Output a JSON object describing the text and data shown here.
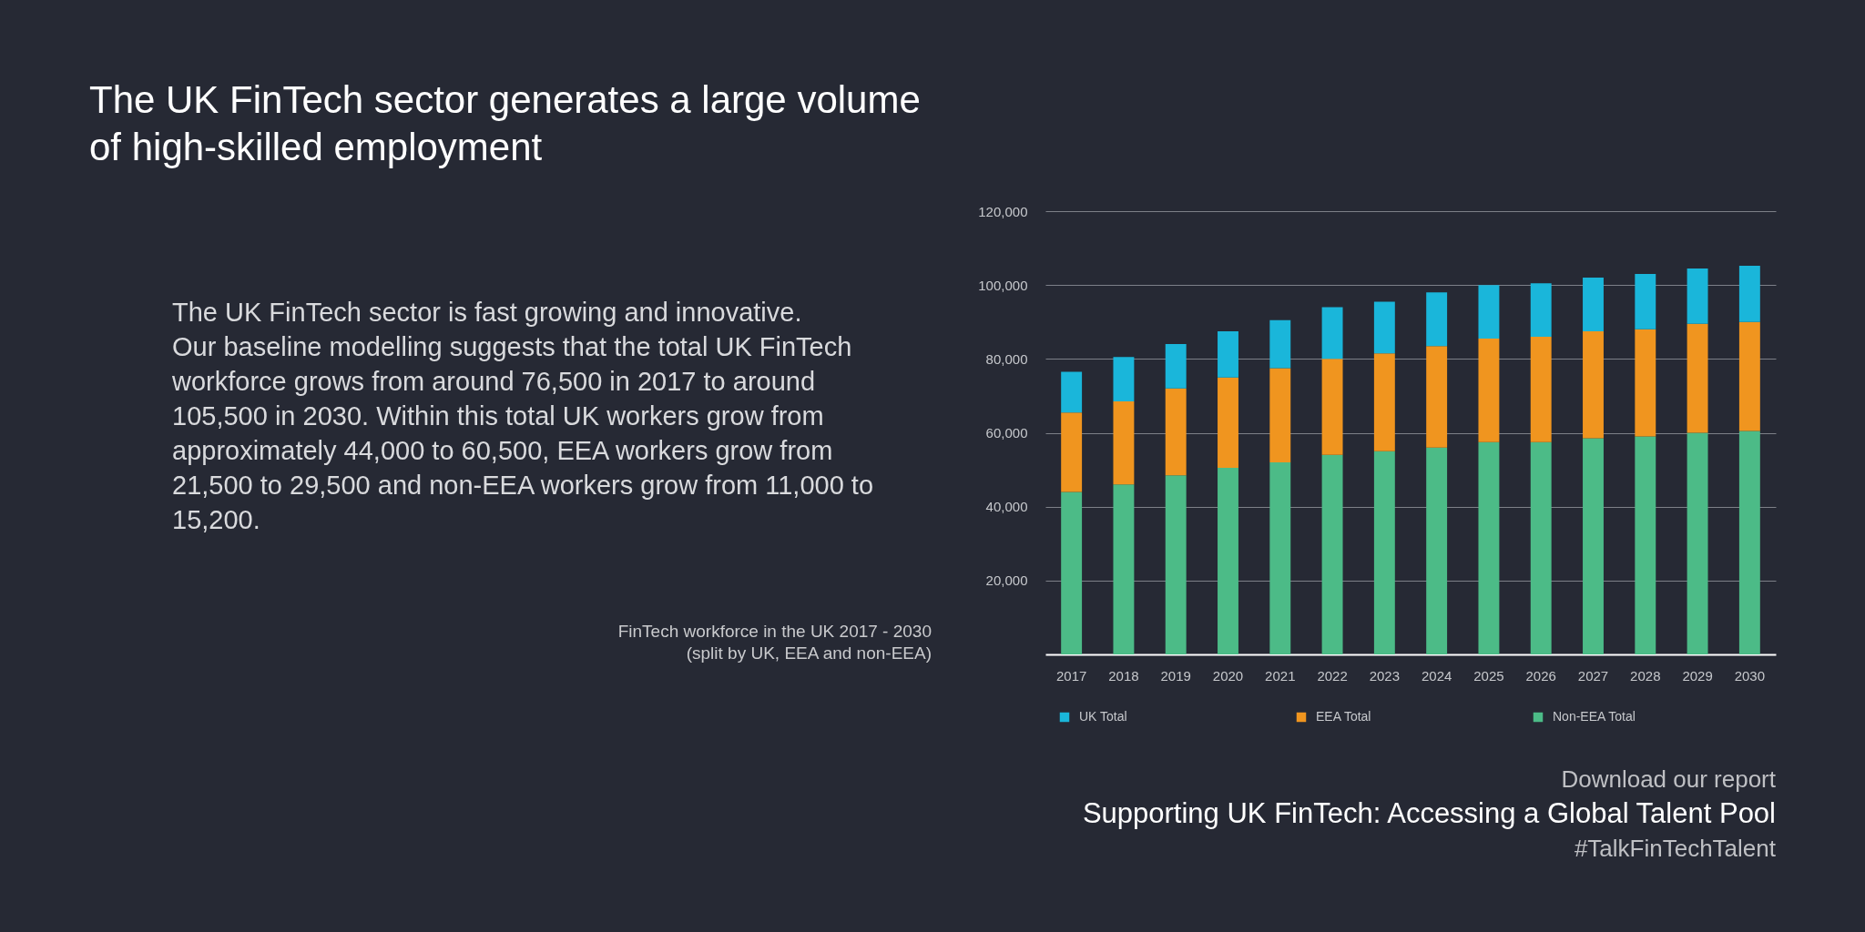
{
  "chart_data": {
    "type": "bar",
    "title": "The UK FinTech sector generates a large volume of high-skilled employment",
    "categories": [
      "2017",
      "2018",
      "2019",
      "2020",
      "2021",
      "2022",
      "2023",
      "2024",
      "2025",
      "2026",
      "2027",
      "2028",
      "2029",
      "2030"
    ],
    "series": [
      {
        "name": "Non-EEA Total",
        "color": "#4cbb87",
        "values": [
          44000,
          46000,
          48500,
          50500,
          52000,
          54000,
          55000,
          56000,
          57500,
          57500,
          58500,
          59000,
          60000,
          60500
        ]
      },
      {
        "name": "EEA Total",
        "color": "#f0951f",
        "values": [
          21500,
          22500,
          23500,
          24500,
          25500,
          26000,
          26500,
          27500,
          28000,
          28500,
          29000,
          29000,
          29500,
          29500
        ]
      },
      {
        "name": "UK Total",
        "color": "#1ab6da",
        "values": [
          11000,
          12000,
          12000,
          12500,
          13000,
          14000,
          14000,
          14500,
          14500,
          14500,
          14500,
          15000,
          15000,
          15200
        ]
      }
    ],
    "stacked": true,
    "ylim": [
      0,
      120000
    ],
    "yticks": [
      {
        "value": 20000,
        "label": "20,000"
      },
      {
        "value": 40000,
        "label": "40,000"
      },
      {
        "value": 60000,
        "label": "60,000"
      },
      {
        "value": 80000,
        "label": "80,000"
      },
      {
        "value": 100000,
        "label": "100,000"
      },
      {
        "value": 120000,
        "label": "120,000"
      }
    ],
    "grid": "y",
    "legend": "bottom",
    "annotations": [
      "The UK FinTech sector is fast growing and innovative.",
      "Our baseline modelling suggests that the total UK FinTech workforce grows from around 76,500 in 2017 to around 105,500 in 2030. Within this total UK workers grow from approximately 44,000 to 60,500, EEA workers grow from 21,500 to 29,500 and non-EEA workers grow from 11,000 to 15,200.",
      "FinTech workforce in the UK 2017 - 2030",
      "(split by UK, EEA and non-EEA)",
      "Download our report",
      "Supporting UK FinTech: Accessing a Global Talent Pool",
      "#TalkFinTechTalent"
    ]
  }
}
